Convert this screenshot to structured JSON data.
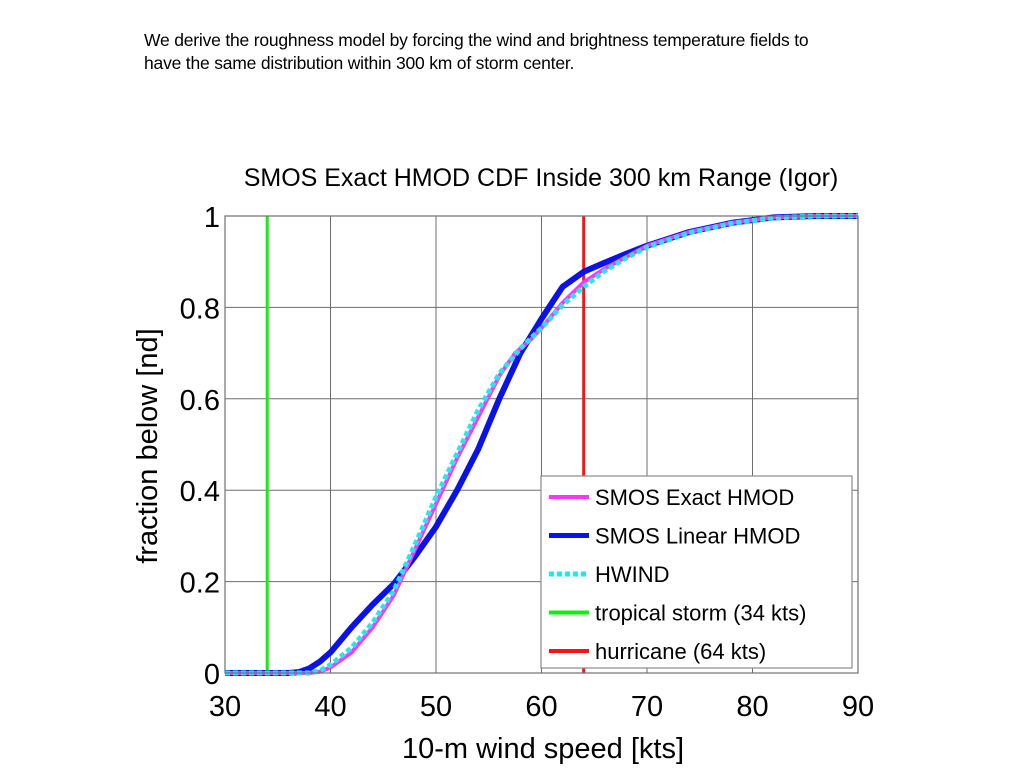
{
  "caption": {
    "line1": "We derive the roughness model by forcing the wind and brightness temperature fields to",
    "line2": "have the same distribution within 300 km of storm center."
  },
  "chart_data": {
    "type": "line",
    "title": "SMOS Exact HMOD CDF Inside 300 km Range (Igor)",
    "xlabel": "10-m wind speed [kts]",
    "ylabel": "fraction below [nd]",
    "xlim": [
      30,
      90
    ],
    "ylim": [
      0,
      1
    ],
    "xticks": [
      30,
      40,
      50,
      60,
      70,
      80,
      90
    ],
    "xtick_labels": [
      "30",
      "40",
      "50",
      "60",
      "70",
      "80",
      "90"
    ],
    "yticks": [
      0,
      0.2,
      0.4,
      0.6,
      0.8,
      1
    ],
    "ytick_labels": [
      "0",
      "0.2",
      "0.4",
      "0.6",
      "0.8",
      "1"
    ],
    "grid": true,
    "legend_position": "bottom-right",
    "series": [
      {
        "name": "SMOS Exact HMOD",
        "color": "#ff33ff",
        "style": "solid",
        "x": [
          30,
          38,
          39,
          40,
          42,
          44,
          46,
          48,
          50,
          52,
          54,
          56,
          57.5,
          59,
          60,
          62,
          64,
          66,
          68,
          70,
          74,
          78,
          82,
          86,
          90
        ],
        "y": [
          0,
          0,
          0.003,
          0.012,
          0.045,
          0.1,
          0.17,
          0.27,
          0.37,
          0.47,
          0.56,
          0.65,
          0.7,
          0.73,
          0.755,
          0.81,
          0.855,
          0.885,
          0.91,
          0.935,
          0.965,
          0.985,
          0.997,
          1,
          1
        ]
      },
      {
        "name": "SMOS Linear HMOD",
        "color": "#0a12e6",
        "style": "solid",
        "x": [
          30,
          36,
          37,
          38,
          39,
          40,
          42,
          44,
          46,
          48,
          50,
          52,
          54,
          56,
          58,
          60,
          61,
          62,
          64,
          66,
          68,
          70,
          74,
          78,
          82,
          86,
          90
        ],
        "y": [
          0,
          0,
          0.002,
          0.01,
          0.025,
          0.045,
          0.1,
          0.15,
          0.195,
          0.255,
          0.32,
          0.4,
          0.49,
          0.6,
          0.7,
          0.775,
          0.81,
          0.845,
          0.878,
          0.898,
          0.917,
          0.935,
          0.965,
          0.985,
          0.997,
          1,
          1
        ]
      },
      {
        "name": "HWIND",
        "color": "#22e6f0",
        "style": "dotted",
        "x": [
          30,
          38,
          39,
          40,
          42,
          44,
          46,
          48,
          50,
          52,
          54,
          56,
          58,
          60,
          62,
          64,
          66,
          68,
          70,
          74,
          78,
          82,
          86,
          90
        ],
        "y": [
          0,
          0,
          0.005,
          0.018,
          0.055,
          0.11,
          0.18,
          0.28,
          0.385,
          0.48,
          0.575,
          0.655,
          0.71,
          0.755,
          0.805,
          0.845,
          0.88,
          0.908,
          0.932,
          0.963,
          0.984,
          0.996,
          1,
          1
        ]
      }
    ],
    "reference_lines": [
      {
        "name": "tropical storm (34 kts)",
        "x": 34,
        "color": "#11ee11"
      },
      {
        "name": "hurricane (64 kts)",
        "x": 64,
        "color": "#ff1111"
      }
    ],
    "legend": [
      {
        "label": "SMOS Exact HMOD",
        "color": "#ff33ff",
        "style": "solid"
      },
      {
        "label": "SMOS Linear HMOD",
        "color": "#0a12e6",
        "style": "solid"
      },
      {
        "label": "HWIND",
        "color": "#22e6f0",
        "style": "dotted"
      },
      {
        "label": "tropical storm (34 kts)",
        "color": "#11ee11",
        "style": "solid"
      },
      {
        "label": "hurricane (64 kts)",
        "color": "#ff1111",
        "style": "solid"
      }
    ]
  }
}
